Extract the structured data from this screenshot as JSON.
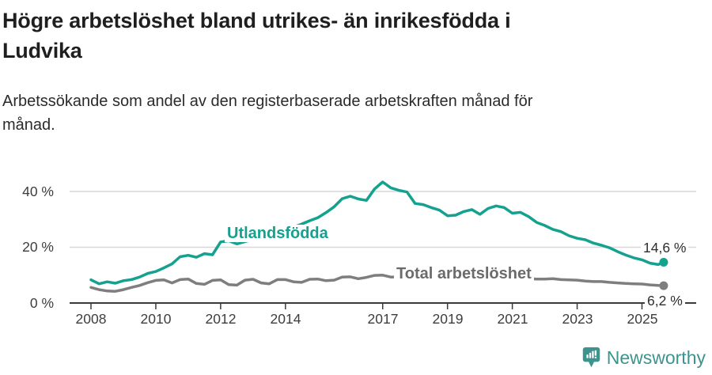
{
  "header": {
    "title_line1": "Högre arbetslöshet bland utrikes- än inrikesfödda i",
    "title_line2": "Ludvika",
    "subtitle_line1": "Arbetssökande som andel av den registerbaserade arbetskraften månad för",
    "subtitle_line2": "månad."
  },
  "chart_data": {
    "type": "line",
    "title": "Högre arbetslöshet bland utrikes- än inrikesfödda i Ludvika",
    "subtitle": "Arbetssökande som andel av den registerbaserade arbetskraften månad för månad.",
    "xlabel": "",
    "ylabel": "",
    "grid": "horizontal-only",
    "legend_position": "inline-labels-on-lines",
    "xlim": [
      2007.3,
      2026.7
    ],
    "ylim": [
      0,
      46
    ],
    "axis_color": "#3a3a3a",
    "grid_color": "#d7d7d7",
    "x_ticks": [
      {
        "year": 2008,
        "label": "2008"
      },
      {
        "year": 2010,
        "label": "2010"
      },
      {
        "year": 2012,
        "label": "2012"
      },
      {
        "year": 2014,
        "label": "2014"
      },
      {
        "year": 2017,
        "label": "2017"
      },
      {
        "year": 2019,
        "label": "2019"
      },
      {
        "year": 2021,
        "label": "2021"
      },
      {
        "year": 2023,
        "label": "2023"
      },
      {
        "year": 2025,
        "label": "2025"
      }
    ],
    "y_ticks": [
      {
        "value": 0,
        "label": "0 %"
      },
      {
        "value": 20,
        "label": "20 %"
      },
      {
        "value": 40,
        "label": "40 %"
      }
    ],
    "x": [
      2008.0,
      2008.25,
      2008.5,
      2008.75,
      2009.0,
      2009.25,
      2009.5,
      2009.75,
      2010.0,
      2010.25,
      2010.5,
      2010.75,
      2011.0,
      2011.25,
      2011.5,
      2011.75,
      2012.0,
      2012.25,
      2012.5,
      2012.75,
      2013.0,
      2013.25,
      2013.5,
      2013.75,
      2014.0,
      2014.25,
      2014.5,
      2014.75,
      2015.0,
      2015.25,
      2015.5,
      2015.75,
      2016.0,
      2016.25,
      2016.5,
      2016.75,
      2017.0,
      2017.25,
      2017.5,
      2017.75,
      2018.0,
      2018.25,
      2018.5,
      2018.75,
      2019.0,
      2019.25,
      2019.5,
      2019.75,
      2020.0,
      2020.25,
      2020.5,
      2020.75,
      2021.0,
      2021.25,
      2021.5,
      2021.75,
      2022.0,
      2022.25,
      2022.5,
      2022.75,
      2023.0,
      2023.25,
      2023.5,
      2023.75,
      2024.0,
      2024.25,
      2024.5,
      2024.75,
      2025.0,
      2025.25,
      2025.5,
      2025.67
    ],
    "series": [
      {
        "name": "Utlandsfödda",
        "color": "#14a18f",
        "end_label": "14,6 %",
        "end_value": 14.6,
        "values": [
          8.3,
          6.9,
          7.6,
          7.1,
          8.0,
          8.4,
          9.3,
          10.6,
          11.3,
          12.6,
          14.0,
          16.6,
          17.1,
          16.4,
          17.7,
          17.3,
          21.9,
          22.3,
          21.2,
          22.0,
          22.8,
          23.5,
          24.3,
          25.2,
          26.0,
          27.2,
          28.3,
          29.5,
          30.6,
          32.4,
          34.5,
          37.4,
          38.3,
          37.3,
          36.8,
          40.9,
          43.4,
          41.3,
          40.4,
          39.8,
          35.7,
          35.3,
          34.2,
          33.3,
          31.3,
          31.5,
          32.8,
          33.5,
          31.8,
          33.9,
          34.8,
          34.2,
          32.2,
          32.5,
          31.0,
          28.9,
          27.8,
          26.4,
          25.6,
          24.1,
          23.2,
          22.7,
          21.5,
          20.7,
          19.8,
          18.4,
          17.2,
          16.2,
          15.5,
          14.3,
          13.8,
          14.6
        ]
      },
      {
        "name": "Total arbetslöshet",
        "color": "#7e7e7e",
        "label_color": "#6b6b6b",
        "end_label": "6,2 %",
        "end_value": 6.2,
        "values": [
          5.6,
          4.8,
          4.3,
          4.2,
          4.8,
          5.6,
          6.3,
          7.3,
          8.1,
          8.3,
          7.2,
          8.4,
          8.6,
          7.0,
          6.7,
          8.1,
          8.3,
          6.6,
          6.4,
          8.2,
          8.5,
          7.2,
          6.9,
          8.4,
          8.4,
          7.6,
          7.4,
          8.5,
          8.6,
          8.0,
          8.2,
          9.3,
          9.4,
          8.7,
          9.2,
          9.9,
          10.0,
          9.3,
          9.4,
          9.6,
          9.4,
          8.9,
          8.8,
          9.1,
          9.0,
          8.8,
          8.9,
          9.1,
          9.0,
          9.4,
          9.6,
          9.3,
          9.1,
          8.9,
          8.7,
          8.6,
          8.6,
          8.7,
          8.4,
          8.3,
          8.2,
          7.9,
          7.7,
          7.7,
          7.4,
          7.2,
          7.0,
          6.9,
          6.8,
          6.5,
          6.3,
          6.2
        ]
      }
    ]
  },
  "footer": {
    "brand": "Newsworthy",
    "brand_color": "#3d948e"
  }
}
